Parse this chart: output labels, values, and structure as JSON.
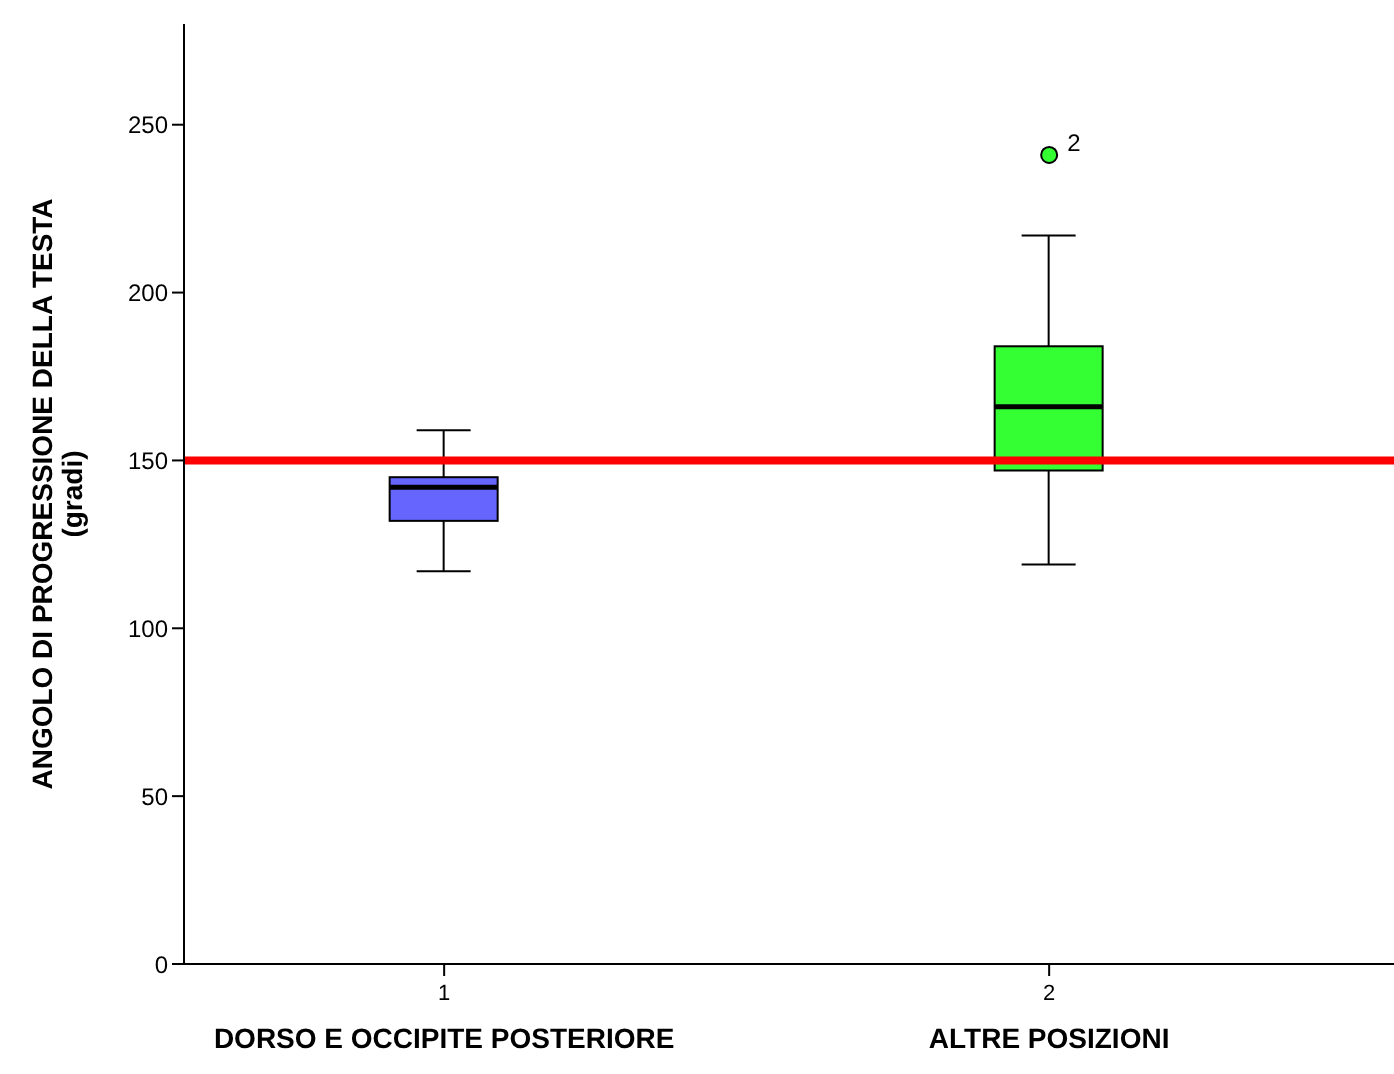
{
  "chart_data": {
    "type": "box",
    "ylabel": "ANGOLO DI PROGRESSIONE DELLA TESTA\n(gradi)",
    "categories": [
      "1",
      "2"
    ],
    "colors": [
      "#6666ff",
      "#33ff33"
    ],
    "boxes": [
      {
        "low": 117,
        "q1": 132,
        "median": 142,
        "q3": 145,
        "high": 159
      },
      {
        "low": 119,
        "q1": 147,
        "median": 166,
        "q3": 184,
        "high": 217,
        "outliers": [
          241
        ]
      }
    ],
    "ylim": [
      0,
      280
    ],
    "yticks": [
      0,
      50,
      100,
      150,
      200,
      250
    ],
    "grid": false,
    "ref_lines": [
      {
        "axis": "y",
        "value": 150,
        "color": "#ff0000"
      }
    ],
    "annotations": [
      "DORSO E OCCIPITE POSTERIORE",
      "ALTRE POSIZIONI",
      "2"
    ]
  }
}
